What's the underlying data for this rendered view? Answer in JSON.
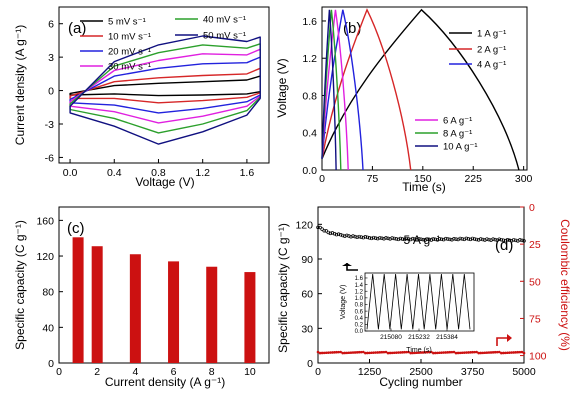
{
  "chart_data": [
    {
      "panel": "(a)",
      "type": "line",
      "xlabel": "Voltage (V)",
      "ylabel": "Current density (A g⁻¹)",
      "xlim": [
        -0.1,
        1.8
      ],
      "ylim": [
        -6.5,
        7.5
      ],
      "xticks": [
        "0.0",
        "0.4",
        "0.8",
        "1.2",
        "1.6"
      ],
      "yticks": [
        "-6",
        "-3",
        "0",
        "3",
        "6"
      ],
      "legend": "top",
      "series": [
        {
          "name": "5 mV s⁻¹",
          "color": "#000000",
          "x": [
            0.0,
            0.4,
            0.8,
            1.2,
            1.6,
            1.72
          ],
          "upper": [
            -0.25,
            0.45,
            0.65,
            0.8,
            0.95,
            1.3
          ],
          "lower": [
            -0.4,
            -0.3,
            -0.45,
            -0.4,
            -0.3,
            -0.1
          ]
        },
        {
          "name": "10 mV s⁻¹",
          "color": "#d62728",
          "x": [
            0.0,
            0.4,
            0.8,
            1.2,
            1.6,
            1.72
          ],
          "upper": [
            -0.5,
            0.8,
            1.15,
            1.35,
            1.5,
            2.0
          ],
          "lower": [
            -0.7,
            -0.7,
            -1.1,
            -0.9,
            -0.6,
            -0.2
          ]
        },
        {
          "name": "20 mV s⁻¹",
          "color": "#2222dd",
          "x": [
            0.0,
            0.4,
            0.8,
            1.2,
            1.6,
            1.72
          ],
          "upper": [
            -0.8,
            1.3,
            2.0,
            2.4,
            2.5,
            3.0
          ],
          "lower": [
            -1.1,
            -1.3,
            -2.0,
            -1.6,
            -1.0,
            -0.4
          ]
        },
        {
          "name": "30 mV s⁻¹",
          "color": "#e020e0",
          "x": [
            0.0,
            0.4,
            0.8,
            1.2,
            1.6,
            1.72
          ],
          "upper": [
            -1.0,
            1.8,
            2.7,
            3.3,
            3.2,
            3.7
          ],
          "lower": [
            -1.4,
            -1.9,
            -2.9,
            -2.3,
            -1.4,
            -0.5
          ]
        },
        {
          "name": "40 mV s⁻¹",
          "color": "#2ca02c",
          "x": [
            0.0,
            0.4,
            0.8,
            1.2,
            1.6,
            1.72
          ],
          "upper": [
            -1.2,
            2.2,
            3.4,
            4.1,
            3.8,
            4.2
          ],
          "lower": [
            -1.7,
            -2.5,
            -3.8,
            -3.0,
            -1.8,
            -0.6
          ]
        },
        {
          "name": "50 mV s⁻¹",
          "color": "#101080",
          "x": [
            0.0,
            0.4,
            0.8,
            1.2,
            1.6,
            1.72
          ],
          "upper": [
            -1.4,
            2.6,
            4.1,
            4.9,
            4.4,
            4.8
          ],
          "lower": [
            -2.0,
            -3.2,
            -4.8,
            -3.7,
            -2.2,
            -0.7
          ]
        }
      ]
    },
    {
      "panel": "(b)",
      "type": "line",
      "xlabel": "Time (s)",
      "ylabel": "Voltage (V)",
      "xlim": [
        0,
        305
      ],
      "ylim": [
        0,
        1.75
      ],
      "xticks": [
        "0",
        "75",
        "150",
        "225",
        "300"
      ],
      "yticks": [
        "0.0",
        "0.4",
        "0.8",
        "1.2",
        "1.6"
      ],
      "legend": "right",
      "vmax": 1.72,
      "series": [
        {
          "name": "1 A g⁻¹",
          "color": "#000000",
          "t_peak": 148,
          "t_end": 293
        },
        {
          "name": "2 A g⁻¹",
          "color": "#d62728",
          "t_peak": 67,
          "t_end": 132
        },
        {
          "name": "4 A g⁻¹",
          "color": "#2222dd",
          "t_peak": 31,
          "t_end": 61
        },
        {
          "name": "6 A g⁻¹",
          "color": "#e020e0",
          "t_peak": 20,
          "t_end": 39
        },
        {
          "name": "8 A g⁻¹",
          "color": "#2ca02c",
          "t_peak": 14,
          "t_end": 28
        },
        {
          "name": "10 A g⁻¹",
          "color": "#101080",
          "t_peak": 11,
          "t_end": 21
        }
      ]
    },
    {
      "panel": "(c)",
      "type": "bar",
      "xlabel": "Current density (A g⁻¹)",
      "ylabel": "Specific capacity (C g⁻¹)",
      "x": [
        1,
        2,
        4,
        6,
        8,
        10
      ],
      "values": [
        141,
        131,
        122,
        114,
        108,
        102
      ],
      "xlim": [
        0,
        11
      ],
      "ylim": [
        0,
        175
      ],
      "xticks": [
        "0",
        "2",
        "4",
        "6",
        "8",
        "10"
      ],
      "yticks": [
        "0",
        "40",
        "80",
        "120",
        "160"
      ],
      "color": "#cc1111"
    },
    {
      "panel": "(d)",
      "type": "scatter",
      "xlabel": "Cycling number",
      "ylabel": "Specific capacity (C g⁻¹)",
      "y2label": "Coulombic efficiency (%)",
      "annotation": "5 A g⁻¹",
      "xlim": [
        0,
        5000
      ],
      "ylim": [
        0,
        135
      ],
      "y2lim": [
        0,
        105
      ],
      "xticks": [
        "0",
        "1250",
        "2500",
        "3750",
        "5000"
      ],
      "yticks": [
        "0",
        "30",
        "60",
        "90",
        "120"
      ],
      "y2ticks": [
        "0",
        "25",
        "50",
        "75",
        "100"
      ],
      "capacity": {
        "x": [
          0,
          250,
          500,
          1000,
          1500,
          2000,
          2500,
          3000,
          3500,
          4000,
          4500,
          5000
        ],
        "y": [
          118,
          113,
          111,
          109,
          108,
          107.5,
          107,
          107,
          107.5,
          107,
          106.5,
          106
        ]
      },
      "efficiency": {
        "x": [
          0,
          5000
        ],
        "y": [
          98,
          98
        ]
      },
      "inset": {
        "xlabel": "Time (s)",
        "ylabel": "Voltage (V)",
        "xticks": [
          "215080",
          "215232",
          "215384"
        ],
        "yticks": [
          "0.0",
          "0.2",
          "0.4",
          "0.6",
          "0.8",
          "1.0",
          "1.2",
          "1.4",
          "1.6"
        ],
        "cycles": 9,
        "vmax": 1.72
      }
    }
  ]
}
